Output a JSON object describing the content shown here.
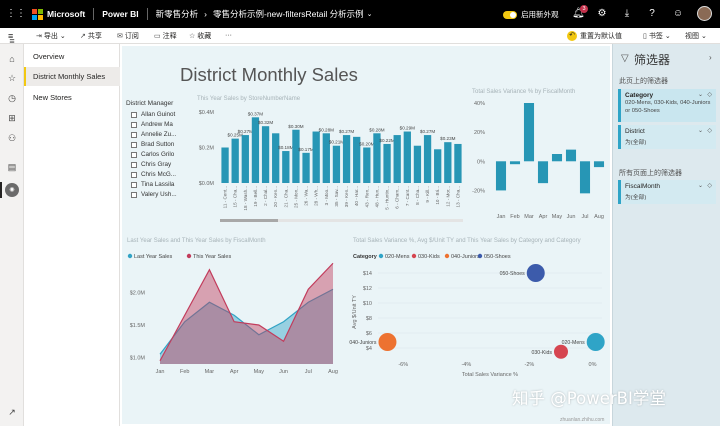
{
  "topbar": {
    "brand": "Microsoft",
    "product": "Power BI",
    "workspace": "新零售分析",
    "report_title": "零售分析示例-new-filtersRetail 分析示例",
    "new_look_label": "启用新外观",
    "notification_count": "3",
    "accent_color": "#f2c811"
  },
  "toolbar": {
    "export": "导出",
    "share": "共享",
    "subscribe": "订阅",
    "comment": "注释",
    "favorite": "收藏",
    "more": "···",
    "reset": "重置为默认值",
    "bookmarks": "书签",
    "view": "视图"
  },
  "pages": [
    {
      "label": "Overview"
    },
    {
      "label": "District Monthly Sales"
    },
    {
      "label": "New Stores"
    }
  ],
  "report": {
    "title": "District Monthly Sales",
    "slicer": {
      "title": "District Manager",
      "items": [
        "Allan Guinot",
        "Andrew Ma",
        "Annelie Zu...",
        "Brad Sutton",
        "Carlos Grilo",
        "Chris Gray",
        "Chris McG...",
        "Tina Lassila",
        "Valery Ush..."
      ]
    }
  },
  "filters": {
    "title": "筛选器",
    "page_section": "此页上的筛选器",
    "all_section": "所有页面上的筛选器",
    "category": {
      "name": "Category",
      "value": "020-Mens, 030-Kids, 040-Juniors or 050-Shoes"
    },
    "district": {
      "name": "District",
      "value": "为(全部)"
    },
    "fiscal_month": {
      "name": "FiscalMonth",
      "value": "为(全部)"
    }
  },
  "footer": {
    "zoom_label": "zhuanlan.zhihu.com",
    "watermark": "知乎 @PowerBI学堂"
  },
  "chart_data": [
    {
      "type": "bar",
      "title": "This Year Sales by StoreNumberName",
      "categories": [
        "11 - Cent...",
        "15 - Cha...",
        "18 - Wash...",
        "19 - Bell...",
        "2 - Chal...",
        "20 - Ken...",
        "21 - Cha...",
        "25 - Mon...",
        "26 - Wa...",
        "28 - Wh...",
        "3 - Moo...",
        "35 - Sav...",
        "39 - Ken...",
        "40 - Har...",
        "43 - Ren...",
        "48 - Hun...",
        "5 - Huntin...",
        "6 - Cham...",
        "7 - Cant...",
        "8 - Cha...",
        "9 - Kill...",
        "10 - Bri...",
        "12 - Mor...",
        "13 - Cha..."
      ],
      "values": [
        0.2,
        0.25,
        0.27,
        0.37,
        0.32,
        0.28,
        0.18,
        0.3,
        0.17,
        0.29,
        0.28,
        0.21,
        0.27,
        0.26,
        0.2,
        0.28,
        0.22,
        0.27,
        0.29,
        0.21,
        0.27,
        0.19,
        0.23,
        0.22
      ],
      "labels": [
        "",
        "$0.25M",
        "$0.27M",
        "$0.37M",
        "$0.32M",
        "",
        "$0.18M",
        "$0.30M",
        "$0.17M",
        "",
        "$0.28M",
        "$0.21M",
        "$0.27M",
        "",
        "$0.20M",
        "$0.28M",
        "$0.22M",
        "",
        "$0.29M",
        "",
        "$0.27M",
        "",
        "$0.23M",
        ""
      ],
      "yticks": [
        "$0.4M",
        "$0.2M",
        "$0.0M"
      ],
      "ylim": [
        0,
        0.4
      ],
      "color": "#2796b5"
    },
    {
      "type": "bar",
      "title": "Total Sales Variance % by FiscalMonth",
      "categories": [
        "Jan",
        "Feb",
        "Mar",
        "Apr",
        "May",
        "Jun",
        "Jul",
        "Aug"
      ],
      "values": [
        -20,
        -2,
        40,
        -15,
        5,
        8,
        -22,
        -4
      ],
      "yticks": [
        "40%",
        "20%",
        "0%",
        "-20%"
      ],
      "ylim": [
        -30,
        40
      ],
      "color": "#2796b5"
    },
    {
      "type": "area",
      "title": "Last Year Sales and This Year Sales by FiscalMonth",
      "categories": [
        "Jan",
        "Feb",
        "Mar",
        "Apr",
        "May",
        "Jun",
        "Jul",
        "Aug"
      ],
      "series": [
        {
          "name": "Last Year Sales",
          "values": [
            1.05,
            1.55,
            1.85,
            1.65,
            1.35,
            1.55,
            1.85,
            2.05
          ],
          "color": "#32a3c5"
        },
        {
          "name": "This Year Sales",
          "values": [
            0.95,
            1.65,
            2.35,
            1.55,
            1.5,
            1.25,
            2.05,
            2.45
          ],
          "color": "#c23c5c"
        }
      ],
      "yticks": [
        "$2.0M",
        "$1.5M",
        "$1.0M"
      ],
      "ylim": [
        0.9,
        2.5
      ]
    },
    {
      "type": "scatter",
      "title": "Total Sales Variance %, Avg $/Unit TY and This Year Sales by Category and Category",
      "xlabel": "Total Sales Variance %",
      "ylabel": "Avg $/Unit TY",
      "legend_title": "Category",
      "points": [
        {
          "name": "020-Mens",
          "x": 0.1,
          "y": 4.8,
          "r": 9,
          "color": "#2fa4c7"
        },
        {
          "name": "030-Kids",
          "x": -1.0,
          "y": 3.5,
          "r": 7,
          "color": "#d64550"
        },
        {
          "name": "040-Juniors",
          "x": -6.5,
          "y": 4.8,
          "r": 9,
          "color": "#ed7231"
        },
        {
          "name": "050-Shoes",
          "x": -1.8,
          "y": 14.0,
          "r": 9,
          "color": "#3c5bab"
        }
      ],
      "xticks": [
        "-6%",
        "-4%",
        "-2%",
        "0%"
      ],
      "yticks": [
        "$14",
        "$12",
        "$10",
        "$8",
        "$6",
        "$4"
      ],
      "xlim": [
        -6.8,
        0.3
      ],
      "ylim": [
        3.2,
        14.4
      ]
    }
  ]
}
